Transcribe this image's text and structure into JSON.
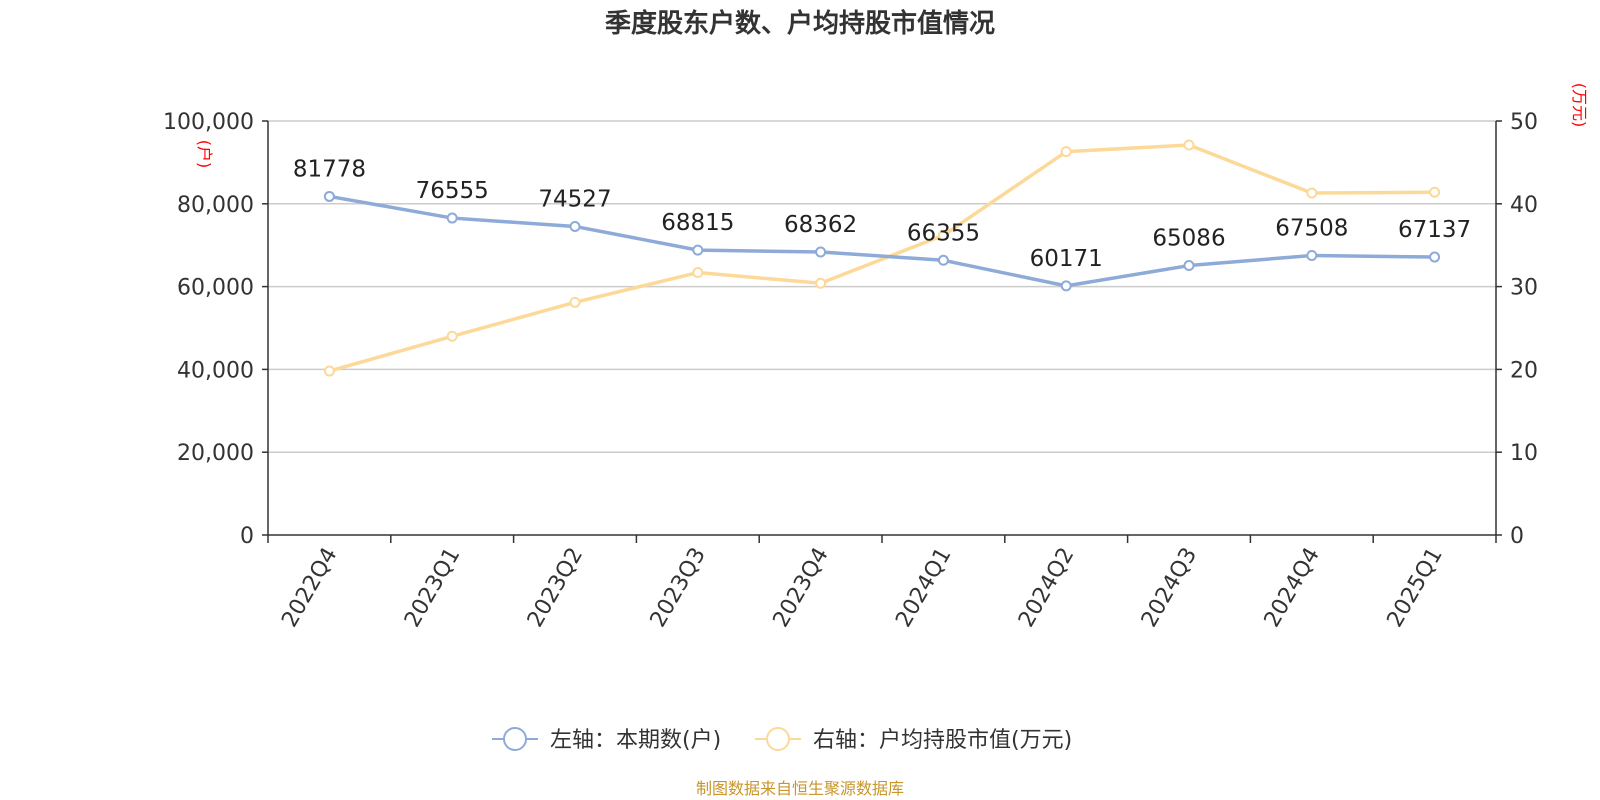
{
  "chart_data": {
    "type": "line",
    "title": "季度股东户数、户均持股市值情况",
    "categories": [
      "2022Q4",
      "2023Q1",
      "2023Q2",
      "2023Q3",
      "2023Q4",
      "2024Q1",
      "2024Q2",
      "2024Q3",
      "2024Q4",
      "2025Q1"
    ],
    "left_axis": {
      "unit_label": "(户)",
      "ylim": [
        0,
        100000
      ],
      "ticks": [
        "0",
        "20,000",
        "40,000",
        "60,000",
        "80,000",
        "100,000"
      ]
    },
    "right_axis": {
      "unit_label": "(万元)",
      "ylim": [
        0,
        50
      ],
      "ticks": [
        "0",
        "10",
        "20",
        "30",
        "40",
        "50"
      ]
    },
    "series": [
      {
        "name": "左轴：本期数(户)",
        "axis": "left",
        "color": "#8eaad8",
        "values": [
          81778,
          76555,
          74527,
          68815,
          68362,
          66355,
          60171,
          65086,
          67508,
          67137
        ],
        "labels": [
          "81778",
          "76555",
          "74527",
          "68815",
          "68362",
          "66355",
          "60171",
          "65086",
          "67508",
          "67137"
        ]
      },
      {
        "name": "右轴：户均持股市值(万元)",
        "axis": "right",
        "color": "#fcd998",
        "values": [
          19.8,
          24.0,
          28.1,
          31.7,
          30.4,
          36.2,
          46.3,
          47.1,
          41.3,
          41.4
        ]
      }
    ],
    "grid": true,
    "legend_position": "bottom"
  },
  "footer": {
    "source": "制图数据来自恒生聚源数据库"
  }
}
